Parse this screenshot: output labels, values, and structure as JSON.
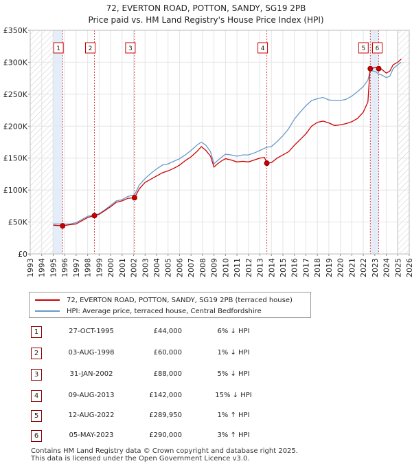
{
  "chart_data": {
    "type": "line",
    "title": "72, EVERTON ROAD, POTTON, SANDY, SG19 2PB",
    "subtitle": "Price paid vs. HM Land Registry's House Price Index (HPI)",
    "ylim": [
      0,
      350000
    ],
    "xlim": [
      1993,
      2026
    ],
    "yticks": [
      {
        "value": 0,
        "label": "£0"
      },
      {
        "value": 50000,
        "label": "£50K"
      },
      {
        "value": 100000,
        "label": "£100K"
      },
      {
        "value": 150000,
        "label": "£150K"
      },
      {
        "value": 200000,
        "label": "£200K"
      },
      {
        "value": 250000,
        "label": "£250K"
      },
      {
        "value": 300000,
        "label": "£300K"
      },
      {
        "value": 350000,
        "label": "£350K"
      }
    ],
    "xticks": [
      "1993",
      "1994",
      "1995",
      "1996",
      "1997",
      "1998",
      "1999",
      "2000",
      "2001",
      "2002",
      "2003",
      "2004",
      "2005",
      "2006",
      "2007",
      "2008",
      "2009",
      "2010",
      "2011",
      "2012",
      "2013",
      "2014",
      "2015",
      "2016",
      "2017",
      "2018",
      "2019",
      "2020",
      "2021",
      "2022",
      "2023",
      "2024",
      "2025",
      "2026"
    ],
    "hatch_ranges": [
      [
        1993,
        1995.0
      ],
      [
        2025.0,
        2026
      ]
    ],
    "shade_ranges": [
      [
        1995.0,
        1995.82
      ],
      [
        2022.61,
        2023.34
      ]
    ],
    "series": [
      {
        "name": "72, EVERTON ROAD, POTTON, SANDY, SG19 2PB (terraced house)",
        "color": "#cc0000",
        "points": [
          [
            1995.0,
            45000
          ],
          [
            1995.82,
            44000
          ],
          [
            1996.5,
            46000
          ],
          [
            1997.0,
            47000
          ],
          [
            1997.5,
            52000
          ],
          [
            1998.0,
            57000
          ],
          [
            1998.59,
            60000
          ],
          [
            1999.0,
            62000
          ],
          [
            1999.5,
            68000
          ],
          [
            2000.0,
            74000
          ],
          [
            2000.5,
            81000
          ],
          [
            2001.0,
            83000
          ],
          [
            2001.5,
            87000
          ],
          [
            2002.08,
            88000
          ],
          [
            2002.5,
            102000
          ],
          [
            2003.0,
            112000
          ],
          [
            2003.5,
            117000
          ],
          [
            2004.0,
            122000
          ],
          [
            2004.5,
            127000
          ],
          [
            2005.0,
            130000
          ],
          [
            2005.5,
            134000
          ],
          [
            2006.0,
            139000
          ],
          [
            2006.5,
            146000
          ],
          [
            2007.0,
            152000
          ],
          [
            2007.5,
            160000
          ],
          [
            2007.9,
            168000
          ],
          [
            2008.3,
            162000
          ],
          [
            2008.7,
            153000
          ],
          [
            2009.0,
            136000
          ],
          [
            2009.3,
            141000
          ],
          [
            2009.7,
            146000
          ],
          [
            2010.0,
            149000
          ],
          [
            2010.5,
            147000
          ],
          [
            2011.0,
            144000
          ],
          [
            2011.5,
            145000
          ],
          [
            2012.0,
            144000
          ],
          [
            2012.5,
            147000
          ],
          [
            2013.0,
            150000
          ],
          [
            2013.4,
            151000
          ],
          [
            2013.6,
            142000
          ],
          [
            2014.0,
            143000
          ],
          [
            2014.5,
            150000
          ],
          [
            2015.0,
            155000
          ],
          [
            2015.5,
            160000
          ],
          [
            2016.0,
            170000
          ],
          [
            2016.5,
            179000
          ],
          [
            2017.0,
            188000
          ],
          [
            2017.5,
            200000
          ],
          [
            2018.0,
            206000
          ],
          [
            2018.5,
            208000
          ],
          [
            2019.0,
            205000
          ],
          [
            2019.5,
            201000
          ],
          [
            2020.0,
            202000
          ],
          [
            2020.5,
            204000
          ],
          [
            2021.0,
            207000
          ],
          [
            2021.5,
            212000
          ],
          [
            2022.0,
            222000
          ],
          [
            2022.4,
            238000
          ],
          [
            2022.55,
            280000
          ],
          [
            2022.61,
            289950
          ],
          [
            2022.9,
            291000
          ],
          [
            2023.1,
            292000
          ],
          [
            2023.34,
            290000
          ],
          [
            2023.6,
            289000
          ],
          [
            2024.0,
            283000
          ],
          [
            2024.3,
            286000
          ],
          [
            2024.6,
            296000
          ],
          [
            2025.0,
            300000
          ],
          [
            2025.3,
            305000
          ]
        ]
      },
      {
        "name": "HPI: Average price, terraced house, Central Bedfordshire",
        "color": "#6699cc",
        "points": [
          [
            1995.0,
            47000
          ],
          [
            1995.82,
            46800
          ],
          [
            1996.5,
            47000
          ],
          [
            1997.0,
            49000
          ],
          [
            1997.5,
            54000
          ],
          [
            1998.0,
            59000
          ],
          [
            1998.59,
            60600
          ],
          [
            1999.0,
            63000
          ],
          [
            1999.5,
            69000
          ],
          [
            2000.0,
            76000
          ],
          [
            2000.5,
            83000
          ],
          [
            2001.0,
            85000
          ],
          [
            2001.5,
            90000
          ],
          [
            2002.08,
            92500
          ],
          [
            2002.5,
            108000
          ],
          [
            2003.0,
            118000
          ],
          [
            2003.5,
            126000
          ],
          [
            2004.0,
            133000
          ],
          [
            2004.5,
            139000
          ],
          [
            2005.0,
            141000
          ],
          [
            2005.5,
            145000
          ],
          [
            2006.0,
            149000
          ],
          [
            2006.5,
            155000
          ],
          [
            2007.0,
            162000
          ],
          [
            2007.5,
            170000
          ],
          [
            2007.9,
            175000
          ],
          [
            2008.3,
            170000
          ],
          [
            2008.7,
            160000
          ],
          [
            2009.0,
            141000
          ],
          [
            2009.3,
            146000
          ],
          [
            2009.7,
            152000
          ],
          [
            2010.0,
            156000
          ],
          [
            2010.5,
            155000
          ],
          [
            2011.0,
            153000
          ],
          [
            2011.5,
            155000
          ],
          [
            2012.0,
            155000
          ],
          [
            2012.5,
            158000
          ],
          [
            2013.0,
            162000
          ],
          [
            2013.6,
            167000
          ],
          [
            2014.0,
            168000
          ],
          [
            2014.5,
            176000
          ],
          [
            2015.0,
            185000
          ],
          [
            2015.5,
            196000
          ],
          [
            2016.0,
            211000
          ],
          [
            2016.5,
            222000
          ],
          [
            2017.0,
            232000
          ],
          [
            2017.5,
            240000
          ],
          [
            2018.0,
            243000
          ],
          [
            2018.5,
            245000
          ],
          [
            2019.0,
            241000
          ],
          [
            2019.5,
            240000
          ],
          [
            2020.0,
            240000
          ],
          [
            2020.5,
            242000
          ],
          [
            2021.0,
            247000
          ],
          [
            2021.5,
            254000
          ],
          [
            2022.0,
            262000
          ],
          [
            2022.4,
            272000
          ],
          [
            2022.61,
            287000
          ],
          [
            2022.9,
            286000
          ],
          [
            2023.1,
            285000
          ],
          [
            2023.34,
            281500
          ],
          [
            2023.6,
            280000
          ],
          [
            2024.0,
            276000
          ],
          [
            2024.3,
            278000
          ],
          [
            2024.6,
            290000
          ],
          [
            2025.0,
            296000
          ],
          [
            2025.3,
            300000
          ]
        ]
      }
    ],
    "sales": [
      {
        "n": "1",
        "x": 1995.82,
        "y": 44000
      },
      {
        "n": "2",
        "x": 1998.59,
        "y": 60000
      },
      {
        "n": "3",
        "x": 2002.08,
        "y": 88000
      },
      {
        "n": "4",
        "x": 2013.6,
        "y": 142000
      },
      {
        "n": "5",
        "x": 2022.61,
        "y": 289950
      },
      {
        "n": "6",
        "x": 2023.34,
        "y": 290000
      }
    ]
  },
  "legend": {
    "property_label": "72, EVERTON ROAD, POTTON, SANDY, SG19 2PB (terraced house)",
    "hpi_label": "HPI: Average price, terraced house, Central Bedfordshire",
    "property_color": "#cc0000",
    "hpi_color": "#6699cc"
  },
  "transactions": [
    {
      "n": "1",
      "date": "27-OCT-1995",
      "price": "£44,000",
      "hpi": "6% ↓ HPI"
    },
    {
      "n": "2",
      "date": "03-AUG-1998",
      "price": "£60,000",
      "hpi": "1% ↓ HPI"
    },
    {
      "n": "3",
      "date": "31-JAN-2002",
      "price": "£88,000",
      "hpi": "5% ↓ HPI"
    },
    {
      "n": "4",
      "date": "09-AUG-2013",
      "price": "£142,000",
      "hpi": "15% ↓ HPI"
    },
    {
      "n": "5",
      "date": "12-AUG-2022",
      "price": "£289,950",
      "hpi": "1% ↑ HPI"
    },
    {
      "n": "6",
      "date": "05-MAY-2023",
      "price": "£290,000",
      "hpi": "3% ↑ HPI"
    }
  ],
  "footer": {
    "line1": "Contains HM Land Registry data © Crown copyright and database right 2025.",
    "line2": "This data is licensed under the Open Government Licence v3.0."
  }
}
